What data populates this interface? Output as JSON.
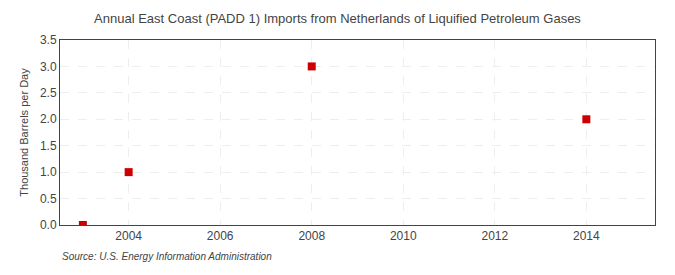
{
  "chart_data": {
    "type": "scatter",
    "title": "Annual East Coast (PADD 1) Imports from Netherlands of Liquified Petroleum Gases",
    "ylabel": "Thousand Barrels per Day",
    "source": "Source: U.S. Energy Information Administration",
    "x": [
      2003,
      2004,
      2008,
      2014
    ],
    "values": [
      0.0,
      1.0,
      3.0,
      2.0
    ],
    "color": "#cc0000",
    "marker": "square",
    "xlim": [
      2002.5,
      2015.5
    ],
    "xticks": [
      2004,
      2006,
      2008,
      2010,
      2012,
      2014
    ],
    "ylim": [
      0,
      3.5
    ],
    "yticks": [
      {
        "value": 0.0,
        "label": "0.0"
      },
      0.5,
      {
        "value": 1.0,
        "label": "1.0"
      },
      1.5,
      {
        "value": 2.0,
        "label": "2.0"
      },
      2.5,
      {
        "value": 3.0,
        "label": "3.0"
      },
      3.5
    ],
    "grid": true
  }
}
